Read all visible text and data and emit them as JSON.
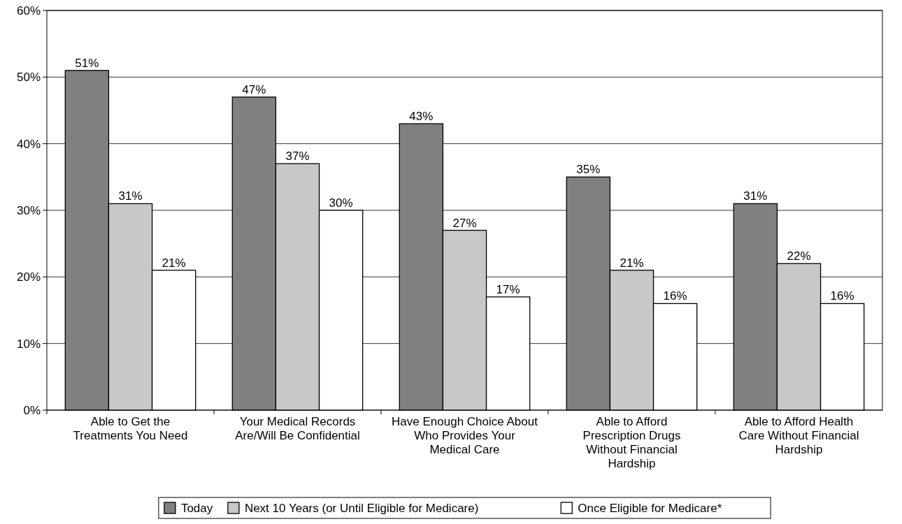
{
  "chart_data": {
    "type": "bar",
    "categories": [
      "Able to Get the Treatments You Need",
      "Your Medical Records Are/Will Be Confidential",
      "Have Enough Choice About Who Provides Your Medical Care",
      "Able to Afford Prescription Drugs Without Financial Hardship",
      "Able to Afford Health Care Without Financial Hardship"
    ],
    "series": [
      {
        "name": "Today",
        "color": "#808080",
        "values": [
          51,
          47,
          43,
          35,
          31
        ],
        "value_labels": [
          "51%",
          "47%",
          "43%",
          "35%",
          "31%"
        ]
      },
      {
        "name": "Next 10 Years (or Until Eligible for Medicare)",
        "color": "#c8c8c8",
        "values": [
          31,
          37,
          27,
          21,
          22
        ],
        "value_labels": [
          "31%",
          "37%",
          "27%",
          "21%",
          "22%"
        ]
      },
      {
        "name": "Once Eligible for Medicare*",
        "color": "#ffffff",
        "values": [
          21,
          30,
          17,
          16,
          16
        ],
        "value_labels": [
          "21%",
          "30%",
          "17%",
          "16%",
          "16%"
        ]
      }
    ],
    "ylim": [
      0,
      60
    ],
    "yticks": [
      {
        "value": 0,
        "label": "0%"
      },
      {
        "value": 10,
        "label": "10%"
      },
      {
        "value": 20,
        "label": "20%"
      },
      {
        "value": 30,
        "label": "30%"
      },
      {
        "value": 40,
        "label": "40%"
      },
      {
        "value": 50,
        "label": "50%"
      },
      {
        "value": 60,
        "label": "60%"
      }
    ],
    "grid": "y",
    "legend": "bottom"
  }
}
